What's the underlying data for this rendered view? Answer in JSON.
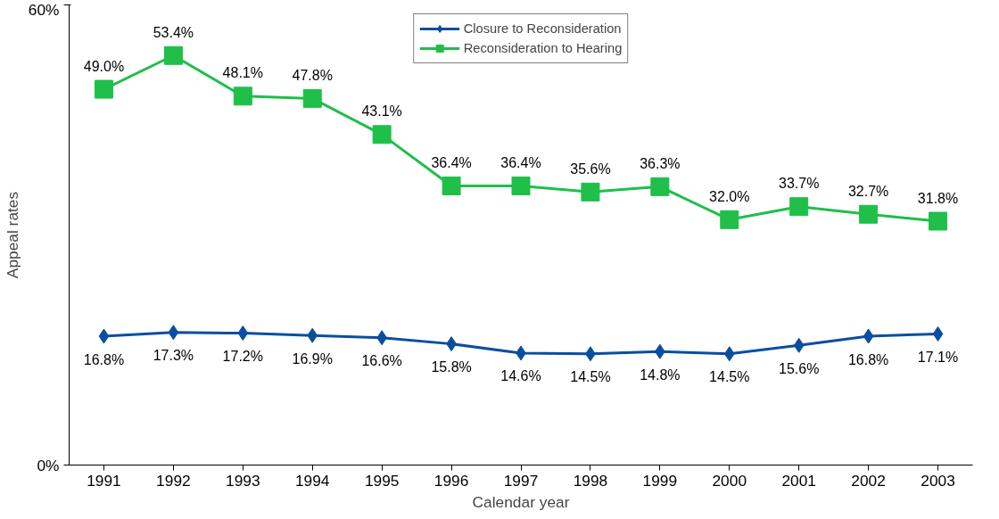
{
  "chart_data": {
    "type": "line",
    "xlabel": "Calendar year",
    "ylabel": "Appeal rates",
    "categories": [
      "1991",
      "1992",
      "1993",
      "1994",
      "1995",
      "1996",
      "1997",
      "1998",
      "1999",
      "2000",
      "2001",
      "2002",
      "2003"
    ],
    "ylim": [
      0,
      60
    ],
    "yticks": [
      {
        "value": 0,
        "label": "0%"
      },
      {
        "value": 60,
        "label": "60%"
      }
    ],
    "grid": false,
    "legend": "top",
    "series": [
      {
        "name": "Closure to Reconsideration",
        "color": "#0a4ea0",
        "marker": "diamond",
        "values": [
          16.8,
          17.3,
          17.2,
          16.9,
          16.6,
          15.8,
          14.6,
          14.5,
          14.8,
          14.5,
          15.6,
          16.8,
          17.1
        ],
        "value_labels": [
          "16.8%",
          "17.3%",
          "17.2%",
          "16.9%",
          "16.6%",
          "15.8%",
          "14.6%",
          "14.5%",
          "14.8%",
          "14.5%",
          "15.6%",
          "16.8%",
          "17.1%"
        ]
      },
      {
        "name": "Reconsideration to Hearing",
        "color": "#1fbf4a",
        "marker": "square",
        "values": [
          49.0,
          53.4,
          48.1,
          47.8,
          43.1,
          36.4,
          36.4,
          35.6,
          36.3,
          32.0,
          33.7,
          32.7,
          31.8
        ],
        "value_labels": [
          "49.0%",
          "53.4%",
          "48.1%",
          "47.8%",
          "43.1%",
          "36.4%",
          "36.4%",
          "35.6%",
          "36.3%",
          "32.0%",
          "33.7%",
          "32.7%",
          "31.8%"
        ]
      }
    ]
  }
}
